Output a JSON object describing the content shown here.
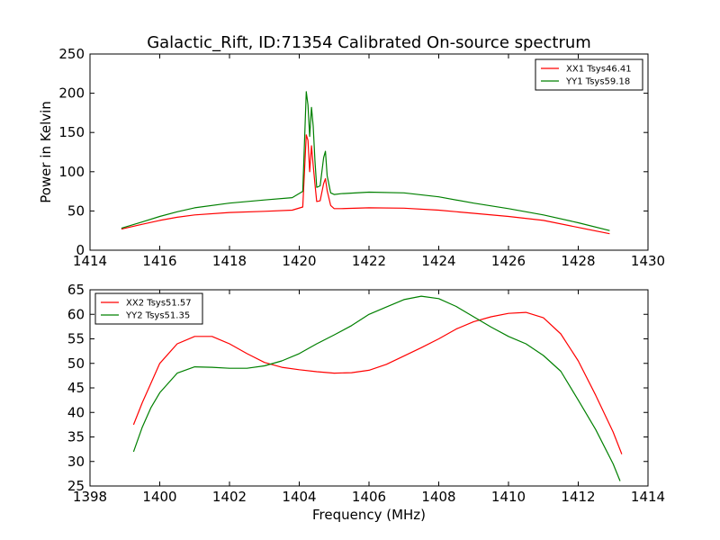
{
  "figure": {
    "title": "Galactic_Rift, ID:71354 Calibrated On-source spectrum",
    "ylabel": "Power in Kelvin",
    "xlabel": "Frequency (MHz)"
  },
  "chart_data": [
    {
      "type": "line",
      "title": "Galactic_Rift, ID:71354 Calibrated On-source spectrum",
      "xlabel": "",
      "ylabel": "Power in Kelvin",
      "xlim": [
        1414,
        1430
      ],
      "ylim": [
        0,
        250
      ],
      "xticks": [
        1414,
        1416,
        1418,
        1420,
        1422,
        1424,
        1426,
        1428,
        1430
      ],
      "yticks": [
        0,
        50,
        100,
        150,
        200,
        250
      ],
      "grid": false,
      "legend": "top-right",
      "series": [
        {
          "name": "XX1 Tsys46.41",
          "color": "#ff0000",
          "x": [
            1414.9,
            1415.5,
            1416,
            1416.5,
            1417,
            1418,
            1419,
            1419.8,
            1420.1,
            1420.2,
            1420.25,
            1420.3,
            1420.35,
            1420.4,
            1420.45,
            1420.5,
            1420.6,
            1420.7,
            1420.75,
            1420.8,
            1420.9,
            1421.0,
            1421.2,
            1422,
            1423,
            1424,
            1425,
            1426,
            1427,
            1428,
            1428.9
          ],
          "y": [
            27,
            33,
            38,
            42,
            45,
            48,
            49.5,
            51,
            55,
            147,
            140,
            100,
            133,
            108,
            85,
            62,
            63,
            85,
            91,
            76,
            57,
            53,
            53,
            54,
            53.5,
            51,
            47,
            43,
            38,
            29,
            21
          ]
        },
        {
          "name": "YY1 Tsys59.18",
          "color": "#008000",
          "x": [
            1414.9,
            1415.5,
            1416,
            1416.5,
            1417,
            1418,
            1419,
            1419.8,
            1420.1,
            1420.2,
            1420.25,
            1420.3,
            1420.35,
            1420.4,
            1420.45,
            1420.5,
            1420.6,
            1420.7,
            1420.75,
            1420.8,
            1420.9,
            1421.0,
            1421.2,
            1422,
            1423,
            1424,
            1425,
            1426,
            1427,
            1428,
            1428.9
          ],
          "y": [
            28,
            36,
            43,
            49,
            54,
            60,
            64,
            67,
            75,
            202,
            185,
            145,
            182,
            158,
            115,
            80,
            82,
            118,
            126,
            95,
            73,
            71,
            72,
            74,
            73,
            68,
            60,
            53,
            45,
            35,
            25
          ]
        }
      ]
    },
    {
      "type": "line",
      "title": "",
      "xlabel": "Frequency (MHz)",
      "ylabel": "",
      "xlim": [
        1398,
        1414
      ],
      "ylim": [
        25,
        65
      ],
      "xticks": [
        1398,
        1400,
        1402,
        1404,
        1406,
        1408,
        1410,
        1412,
        1414
      ],
      "yticks": [
        25,
        30,
        35,
        40,
        45,
        50,
        55,
        60,
        65
      ],
      "grid": false,
      "legend": "top-left",
      "series": [
        {
          "name": "XX2 Tsys51.57",
          "color": "#ff0000",
          "x": [
            1399.25,
            1399.5,
            1399.75,
            1400,
            1400.5,
            1401,
            1401.5,
            1402,
            1402.5,
            1403,
            1403.5,
            1404,
            1404.5,
            1405,
            1405.5,
            1406,
            1406.5,
            1407,
            1407.5,
            1408,
            1408.5,
            1409,
            1409.5,
            1410,
            1410.5,
            1411,
            1411.5,
            1412,
            1412.5,
            1413,
            1413.25
          ],
          "y": [
            37.5,
            42,
            46,
            50,
            54,
            55.5,
            55.5,
            54,
            52,
            50.2,
            49.2,
            48.7,
            48.3,
            48,
            48.1,
            48.6,
            49.8,
            51.5,
            53.2,
            55,
            57,
            58.5,
            59.5,
            60.2,
            60.4,
            59.3,
            56,
            50.5,
            43.5,
            36,
            31.5
          ]
        },
        {
          "name": "YY2 Tsys51.35",
          "color": "#008000",
          "x": [
            1399.25,
            1399.5,
            1399.75,
            1400,
            1400.5,
            1401,
            1401.5,
            1402,
            1402.5,
            1403,
            1403.5,
            1404,
            1404.5,
            1405,
            1405.5,
            1406,
            1406.5,
            1407,
            1407.5,
            1408,
            1408.5,
            1409,
            1409.5,
            1410,
            1410.5,
            1411,
            1411.5,
            1412,
            1412.5,
            1413,
            1413.2
          ],
          "y": [
            32,
            37,
            41,
            44,
            48,
            49.3,
            49.2,
            49,
            49,
            49.5,
            50.5,
            52,
            54,
            55.8,
            57.7,
            60,
            61.5,
            63,
            63.7,
            63.2,
            61.6,
            59.5,
            57.4,
            55.5,
            54,
            51.6,
            48.4,
            42.5,
            36.5,
            29.5,
            26
          ]
        }
      ]
    }
  ]
}
